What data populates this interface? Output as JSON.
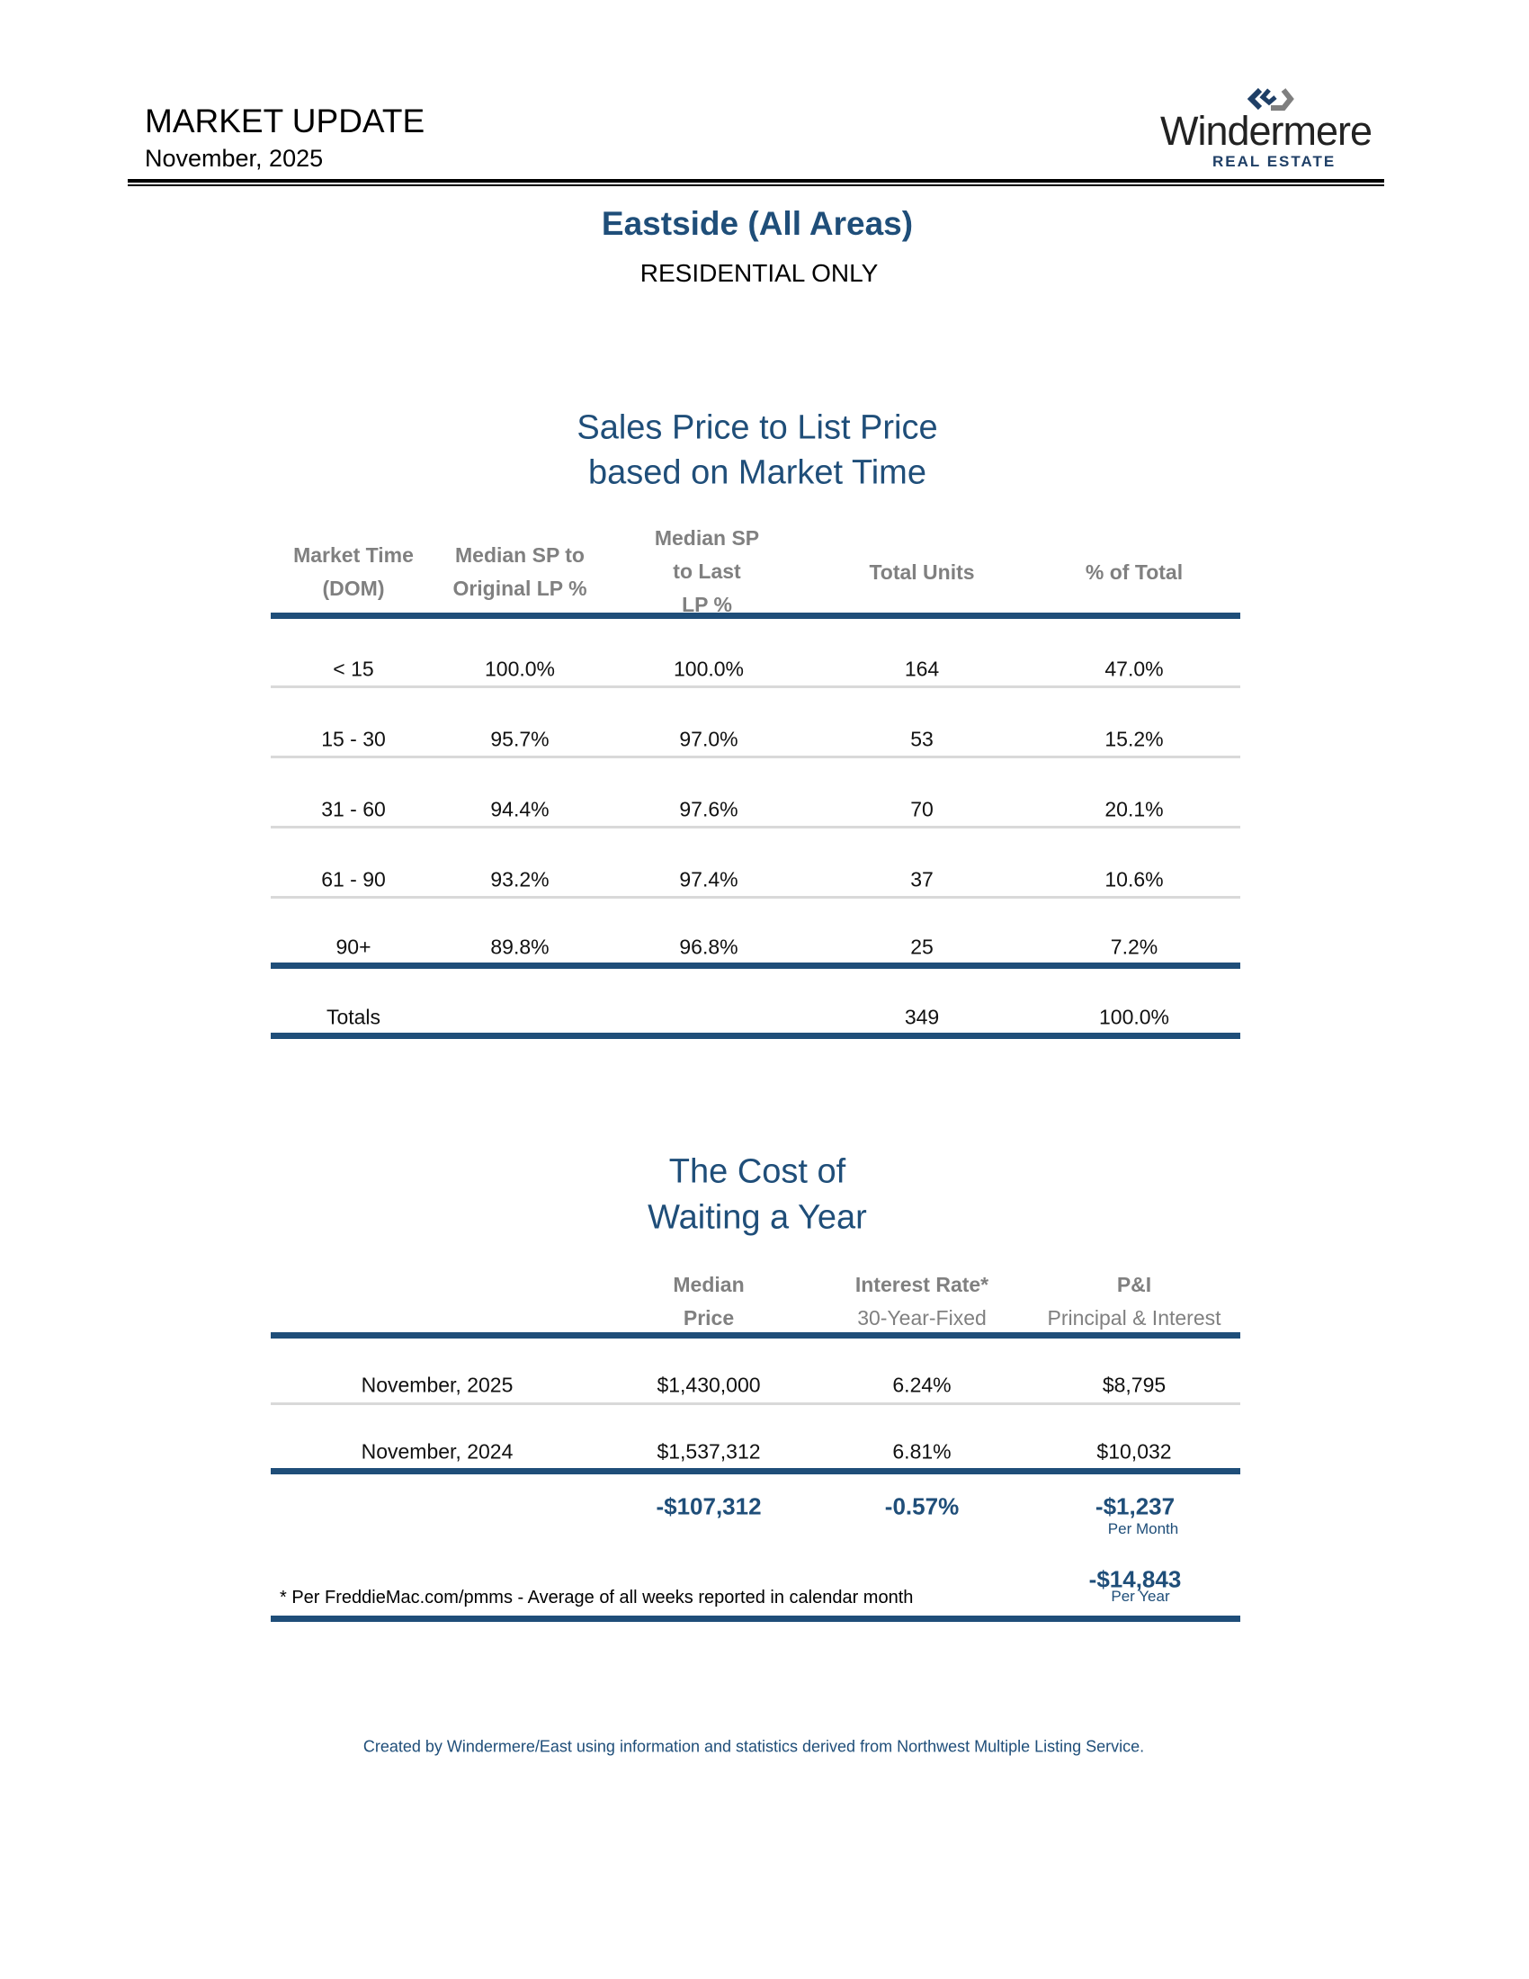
{
  "header": {
    "title": "MARKET UPDATE",
    "date": "November, 2025",
    "logo": {
      "name": "Windermere",
      "tagline": "REAL ESTATE",
      "colors": {
        "navy": "#1f3f66",
        "gray": "#7f7f7f"
      }
    }
  },
  "area_title": "Eastside (All Areas)",
  "subtitle": "RESIDENTIAL ONLY",
  "sales_table": {
    "title_line1": "Sales Price to List Price",
    "title_line2": "based on Market Time",
    "columns": [
      [
        "Market Time",
        "(DOM)"
      ],
      [
        "Median SP to",
        "Original LP %"
      ],
      [
        "Median SP",
        "to Last",
        "LP %"
      ],
      [
        "Total Units"
      ],
      [
        "% of Total"
      ]
    ],
    "rows": [
      [
        "< 15",
        "100.0%",
        "100.0%",
        "164",
        "47.0%"
      ],
      [
        "15 - 30",
        "95.7%",
        "97.0%",
        "53",
        "15.2%"
      ],
      [
        "31 - 60",
        "94.4%",
        "97.6%",
        "70",
        "20.1%"
      ],
      [
        "61 - 90",
        "93.2%",
        "97.4%",
        "37",
        "10.6%"
      ],
      [
        "90+",
        "89.8%",
        "96.8%",
        "25",
        "7.2%"
      ]
    ],
    "totals": {
      "label": "Totals",
      "units": "349",
      "percent": "100.0%"
    }
  },
  "cost_table": {
    "title_line1": "The Cost of",
    "title_line2": "Waiting a Year",
    "columns": [
      {
        "line1": "Median",
        "line2": "Price"
      },
      {
        "line1": "Interest Rate*",
        "line2": "30-Year-Fixed"
      },
      {
        "line1": "P&I",
        "line2": "Principal & Interest"
      }
    ],
    "rows": [
      [
        "November, 2025",
        "$1,430,000",
        "6.24%",
        "$8,795"
      ],
      [
        "November, 2024",
        "$1,537,312",
        "6.81%",
        "$10,032"
      ]
    ],
    "difference": {
      "price": "-$107,312",
      "rate": "-0.57%",
      "monthly": "-$1,237",
      "monthly_label": "Per Month",
      "yearly": "-$14,843",
      "yearly_label": "Per Year"
    },
    "footnote": "* Per FreddieMac.com/pmms - Average of all weeks reported in calendar month"
  },
  "footer": "Created by Windermere/East using information and statistics derived from Northwest Multiple Listing Service.",
  "colors": {
    "accent": "#1f4e79",
    "header_text": "#808080",
    "row_divider": "#d9d9d9"
  }
}
